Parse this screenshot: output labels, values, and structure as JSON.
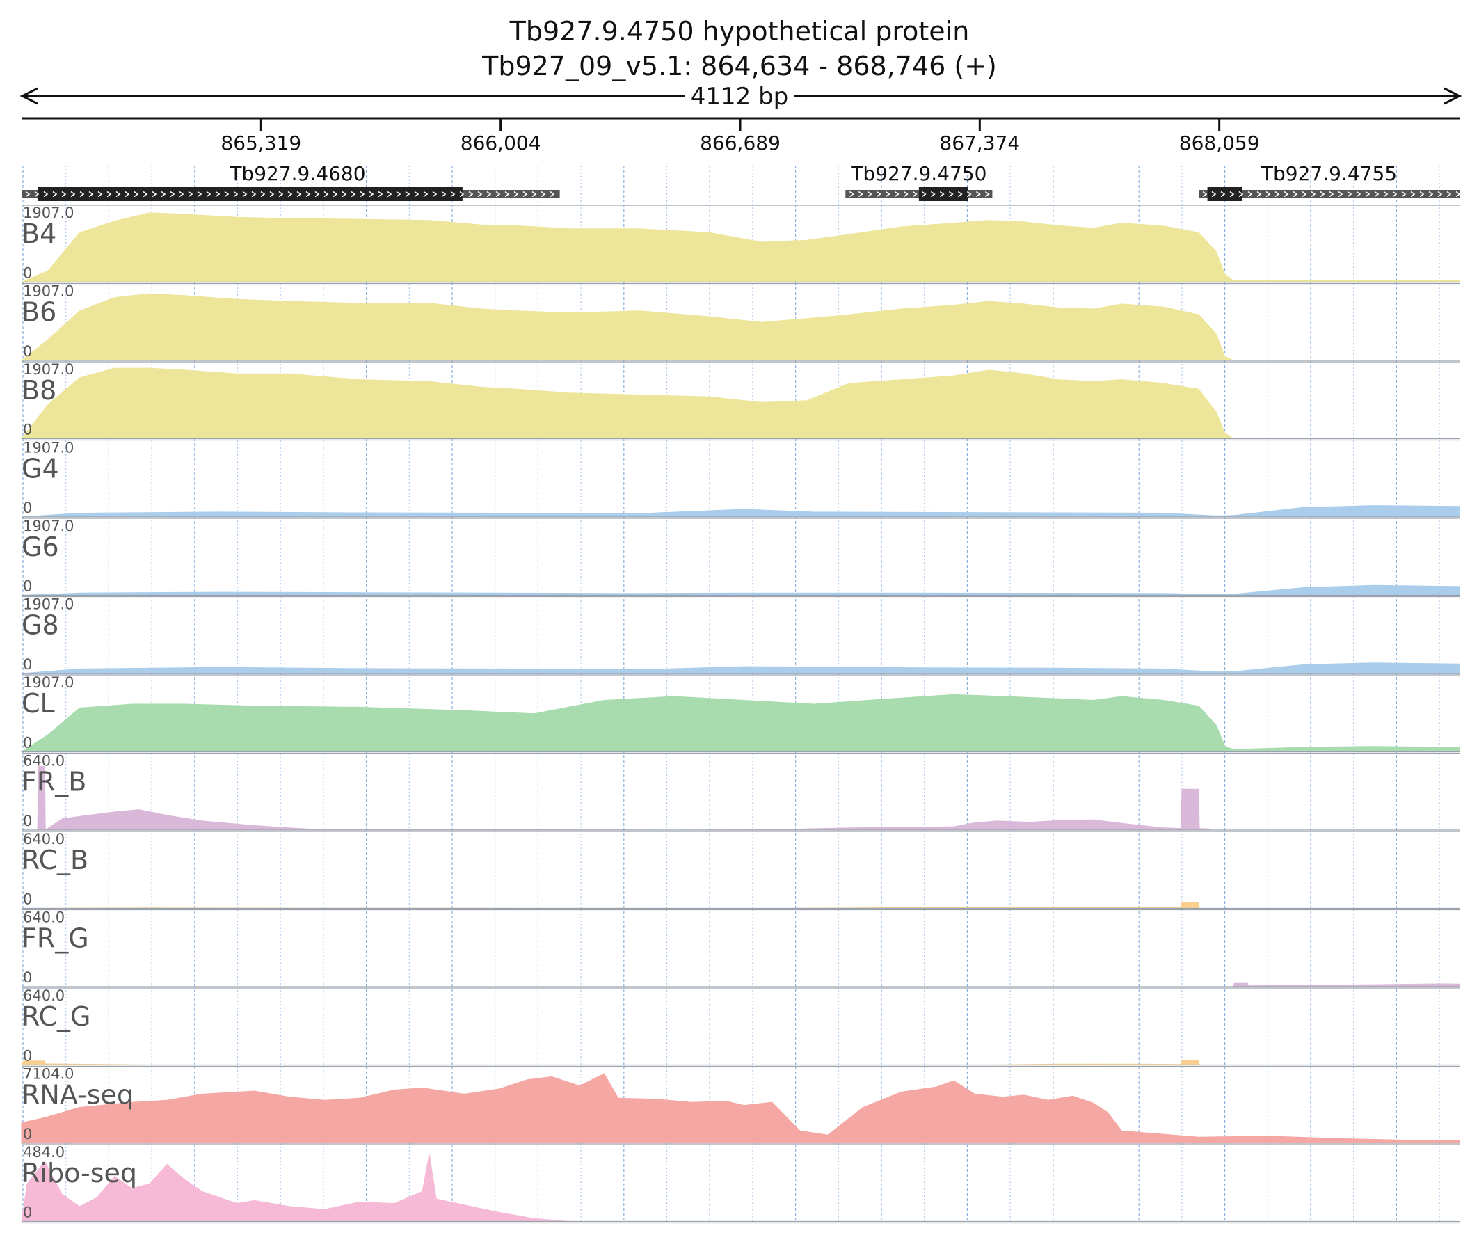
{
  "header": {
    "title": "Tb927.9.4750  hypothetical protein",
    "location": "Tb927_09_v5.1: 864,634 - 868,746 (+)",
    "span_label": "4112 bp"
  },
  "colors": {
    "yellow": "#ede59a",
    "blue": "#a9cdea",
    "green": "#a8dcae",
    "purple": "#d9b8da",
    "orange": "#f8cf8f",
    "red": "#f4a7a3",
    "pink": "#f6b9d6",
    "gridline": "#6f9fd8",
    "gene": "#222222",
    "utr": "#555555"
  },
  "chart_data": {
    "type": "area",
    "genomic_range": [
      864634,
      868746
    ],
    "x_ticks": [
      865319,
      866004,
      866689,
      867374,
      868059
    ],
    "x_tick_labels": [
      "865,319",
      "866,004",
      "866,689",
      "867,374",
      "868,059"
    ],
    "genes": [
      {
        "name": "Tb927.9.4680",
        "start": 864634,
        "end": 866173,
        "cds_start": 864680,
        "cds_end": 865895,
        "strand": "+"
      },
      {
        "name": "Tb927.9.4750",
        "start": 866990,
        "end": 867410,
        "cds_start": 867200,
        "cds_end": 867340,
        "strand": "+"
      },
      {
        "name": "Tb927.9.4755",
        "start": 868000,
        "end": 868746,
        "cds_start": 868025,
        "cds_end": 868125,
        "strand": "+"
      }
    ],
    "tracks": [
      {
        "name": "B4",
        "max": "1907.0",
        "min": "0",
        "color": "yellow",
        "x": [
          864634,
          864710,
          864800,
          864900,
          865000,
          865100,
          865250,
          865400,
          865600,
          865800,
          865950,
          866050,
          866200,
          866400,
          866600,
          866750,
          866880,
          867000,
          867150,
          867300,
          867400,
          867500,
          867600,
          867700,
          867780,
          867900,
          868000,
          868050,
          868075,
          868100,
          868746
        ],
        "y": [
          0,
          300,
          1300,
          1600,
          1820,
          1780,
          1700,
          1670,
          1650,
          1620,
          1500,
          1480,
          1400,
          1400,
          1300,
          1050,
          1100,
          1250,
          1450,
          1550,
          1620,
          1580,
          1480,
          1420,
          1550,
          1470,
          1300,
          800,
          200,
          40,
          40
        ]
      },
      {
        "name": "B6",
        "max": "1907.0",
        "min": "0",
        "color": "yellow",
        "x": [
          864634,
          864710,
          864800,
          864900,
          865000,
          865100,
          865250,
          865400,
          865600,
          865800,
          865950,
          866050,
          866200,
          866400,
          866600,
          866750,
          866880,
          867000,
          867150,
          867300,
          867400,
          867500,
          867600,
          867700,
          867780,
          867900,
          868000,
          868050,
          868075,
          868100,
          868746
        ],
        "y": [
          0,
          550,
          1300,
          1650,
          1750,
          1700,
          1600,
          1550,
          1500,
          1500,
          1350,
          1300,
          1250,
          1300,
          1150,
          1000,
          1100,
          1200,
          1350,
          1450,
          1550,
          1480,
          1380,
          1350,
          1480,
          1400,
          1200,
          700,
          100,
          0,
          0
        ]
      },
      {
        "name": "B8",
        "max": "1907.0",
        "min": "0",
        "color": "yellow",
        "x": [
          864634,
          864710,
          864800,
          864900,
          865000,
          865100,
          865250,
          865400,
          865600,
          865800,
          865950,
          866050,
          866200,
          866400,
          866600,
          866750,
          866880,
          867000,
          867150,
          867300,
          867400,
          867500,
          867600,
          867700,
          867780,
          867900,
          868000,
          868050,
          868075,
          868100,
          868746
        ],
        "y": [
          0,
          900,
          1600,
          1850,
          1850,
          1800,
          1700,
          1700,
          1550,
          1500,
          1350,
          1300,
          1200,
          1150,
          1100,
          950,
          1000,
          1450,
          1550,
          1650,
          1800,
          1700,
          1550,
          1500,
          1550,
          1450,
          1300,
          700,
          150,
          0,
          0
        ]
      },
      {
        "name": "G4",
        "max": "1907.0",
        "min": "0",
        "color": "blue",
        "x": [
          864634,
          864800,
          865200,
          865600,
          866000,
          866400,
          866700,
          866900,
          867200,
          867600,
          867900,
          868050,
          868100,
          868300,
          868500,
          868746
        ],
        "y": [
          0,
          100,
          130,
          110,
          100,
          90,
          200,
          130,
          120,
          110,
          100,
          30,
          40,
          250,
          300,
          280
        ]
      },
      {
        "name": "G6",
        "max": "1907.0",
        "min": "0",
        "color": "blue",
        "x": [
          864634,
          864800,
          865200,
          865600,
          866000,
          866400,
          866700,
          866900,
          867200,
          867600,
          867900,
          868050,
          868100,
          868300,
          868500,
          868746
        ],
        "y": [
          0,
          60,
          80,
          70,
          60,
          50,
          60,
          60,
          60,
          55,
          50,
          20,
          30,
          200,
          260,
          230
        ]
      },
      {
        "name": "G8",
        "max": "1907.0",
        "min": "0",
        "color": "blue",
        "x": [
          864634,
          864800,
          865200,
          865600,
          866000,
          866400,
          866700,
          866900,
          867200,
          867600,
          867900,
          868050,
          868100,
          868300,
          868500,
          868746
        ],
        "y": [
          0,
          120,
          160,
          130,
          120,
          100,
          180,
          170,
          150,
          140,
          120,
          40,
          50,
          230,
          280,
          250
        ]
      },
      {
        "name": "CL",
        "max": "1907.0",
        "min": "0",
        "color": "green",
        "x": [
          864634,
          864710,
          864800,
          864950,
          865100,
          865300,
          865600,
          865900,
          866100,
          866300,
          866500,
          866700,
          866900,
          867100,
          867300,
          867500,
          867700,
          867780,
          867900,
          868000,
          868050,
          868075,
          868100,
          868300,
          868500,
          868746
        ],
        "y": [
          0,
          450,
          1150,
          1250,
          1250,
          1200,
          1170,
          1080,
          1000,
          1350,
          1450,
          1350,
          1250,
          1380,
          1500,
          1430,
          1350,
          1450,
          1350,
          1200,
          700,
          150,
          60,
          120,
          140,
          120
        ]
      },
      {
        "name": "FR_B",
        "max": "640.0",
        "min": "0",
        "color": "purple",
        "x": [
          864634,
          864680,
          864682,
          864700,
          864702,
          864750,
          864800,
          864900,
          864970,
          865050,
          865150,
          865300,
          865450,
          866500,
          866800,
          867000,
          867200,
          867300,
          867350,
          867420,
          867520,
          867600,
          867700,
          867780,
          867900,
          867950,
          867952,
          868000,
          868002,
          868030,
          868032,
          868746
        ],
        "y": [
          0,
          0,
          560,
          560,
          0,
          100,
          120,
          160,
          180,
          130,
          80,
          40,
          10,
          0,
          5,
          20,
          25,
          30,
          60,
          80,
          70,
          85,
          90,
          60,
          20,
          15,
          360,
          360,
          15,
          10,
          0,
          0
        ]
      },
      {
        "name": "RC_B",
        "max": "640.0",
        "min": "0",
        "color": "orange",
        "x": [
          864634,
          865000,
          865400,
          866800,
          867200,
          867400,
          867600,
          867800,
          867950,
          867952,
          868000,
          868002,
          868746
        ],
        "y": [
          0,
          4,
          2,
          0,
          8,
          12,
          10,
          8,
          6,
          55,
          55,
          0,
          0
        ]
      },
      {
        "name": "FR_G",
        "max": "640.0",
        "min": "0",
        "color": "purple",
        "x": [
          864634,
          868000,
          868100,
          868102,
          868140,
          868142,
          868300,
          868500,
          868700,
          868746
        ],
        "y": [
          0,
          0,
          0,
          30,
          30,
          8,
          12,
          18,
          25,
          22
        ]
      },
      {
        "name": "RC_G",
        "max": "640.0",
        "min": "0",
        "color": "orange",
        "x": [
          864634,
          864640,
          864700,
          864702,
          864820,
          865000,
          867400,
          867600,
          867800,
          867950,
          867952,
          868000,
          868002,
          868746
        ],
        "y": [
          0,
          35,
          35,
          10,
          6,
          0,
          0,
          8,
          8,
          5,
          40,
          40,
          0,
          0
        ]
      },
      {
        "name": "RNA-seq",
        "max": "7104.0",
        "min": "0",
        "color": "red",
        "x": [
          864634,
          864700,
          864800,
          864950,
          865050,
          865150,
          865300,
          865400,
          865500,
          865600,
          865700,
          865780,
          865900,
          866000,
          866080,
          866150,
          866230,
          866300,
          866340,
          866450,
          866550,
          866650,
          866700,
          866780,
          866860,
          866940,
          867040,
          867150,
          867250,
          867300,
          867360,
          867440,
          867500,
          867570,
          867640,
          867700,
          867740,
          867780,
          868000,
          868200,
          868400,
          868600,
          868746
        ],
        "y": [
          2000,
          2500,
          3500,
          4000,
          4200,
          4800,
          5100,
          4500,
          4200,
          4400,
          5200,
          5400,
          4800,
          5300,
          6200,
          6500,
          5600,
          6800,
          4400,
          4300,
          4000,
          4100,
          3700,
          4000,
          1200,
          800,
          3500,
          5000,
          5500,
          6100,
          4800,
          4500,
          4700,
          4200,
          4600,
          3900,
          3000,
          1200,
          600,
          700,
          450,
          300,
          250
        ]
      },
      {
        "name": "Ribo-seq",
        "max": "484.0",
        "min": "0",
        "color": "pink",
        "x": [
          864634,
          864650,
          864700,
          864750,
          864800,
          864850,
          864900,
          864950,
          865000,
          865050,
          865100,
          865150,
          865200,
          865250,
          865300,
          865400,
          865500,
          865600,
          865700,
          865780,
          865800,
          865820,
          865900,
          866000,
          866100,
          866200,
          866746
        ],
        "y": [
          0,
          250,
          400,
          180,
          100,
          160,
          300,
          220,
          250,
          380,
          280,
          200,
          160,
          120,
          140,
          100,
          80,
          130,
          120,
          200,
          450,
          150,
          110,
          60,
          20,
          0,
          0
        ]
      }
    ]
  }
}
